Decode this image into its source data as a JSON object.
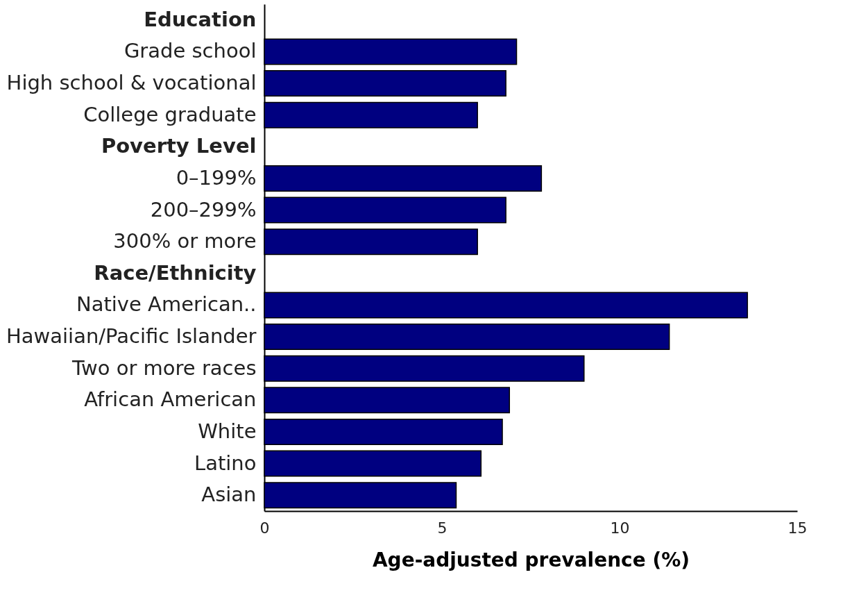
{
  "chart_data": {
    "type": "bar",
    "orientation": "horizontal",
    "xlabel": "Age-adjusted prevalence (%)",
    "categories": [
      "Education",
      "Grade school",
      "High school & vocational",
      "College graduate",
      "Poverty Level",
      "0–199%",
      "200–299%",
      "300% or more",
      "Race/Ethnicity",
      "Native American..",
      "Hawaiian/Pacific Islander",
      "Two or more races",
      "African American",
      "White",
      "Latino",
      "Asian"
    ],
    "values": [
      null,
      7.1,
      6.8,
      6.0,
      null,
      7.8,
      6.8,
      6.0,
      null,
      13.6,
      11.4,
      9.0,
      6.9,
      6.7,
      6.1,
      5.4
    ],
    "color": "#000080",
    "xlim": [
      0,
      15
    ],
    "xticks": [
      0,
      5,
      10,
      15
    ],
    "grid": false
  }
}
